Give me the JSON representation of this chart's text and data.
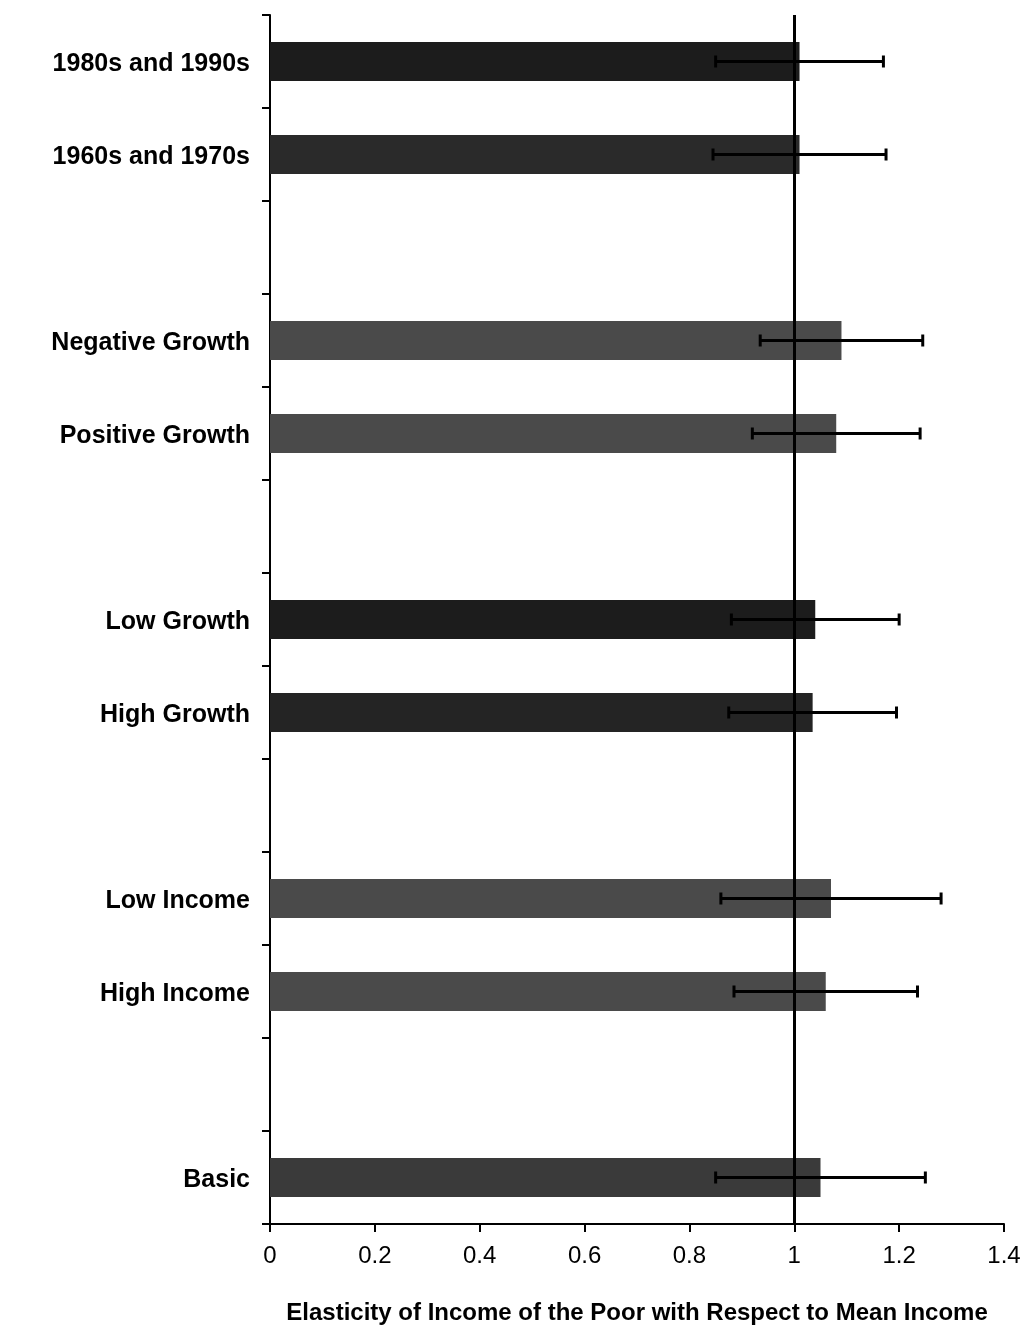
{
  "chart_data": {
    "type": "bar",
    "orientation": "horizontal",
    "xlabel": "Elasticity of Income of the Poor with Respect to Mean Income",
    "categories": [
      "1980s and 1990s",
      "1960s and 1970s",
      null,
      "Negative Growth",
      "Positive Growth",
      null,
      "Low Growth",
      "High Growth",
      null,
      "Low Income",
      "High Income",
      null,
      "Basic"
    ],
    "values": [
      1.01,
      1.01,
      null,
      1.09,
      1.08,
      null,
      1.04,
      1.035,
      null,
      1.07,
      1.06,
      null,
      1.05
    ],
    "errors": [
      0.16,
      0.165,
      null,
      0.155,
      0.16,
      null,
      0.16,
      0.16,
      null,
      0.21,
      0.175,
      null,
      0.2
    ],
    "colors": [
      "#1c1c1c",
      "#2a2a2a",
      "#555555",
      "#4a4a4a",
      "#4a4a4a",
      "#555555",
      "#1c1c1c",
      "#242424",
      "#555555",
      "#4a4a4a",
      "#4a4a4a",
      "#555555",
      "#3a3a3a"
    ],
    "xlim": [
      0,
      1.4
    ],
    "xticks": [
      0,
      0.2,
      0.4,
      0.6,
      0.8,
      1,
      1.2,
      1.4
    ],
    "ref_lines": [
      {
        "axis": "x",
        "value": 1,
        "color": "#000000"
      }
    ]
  }
}
